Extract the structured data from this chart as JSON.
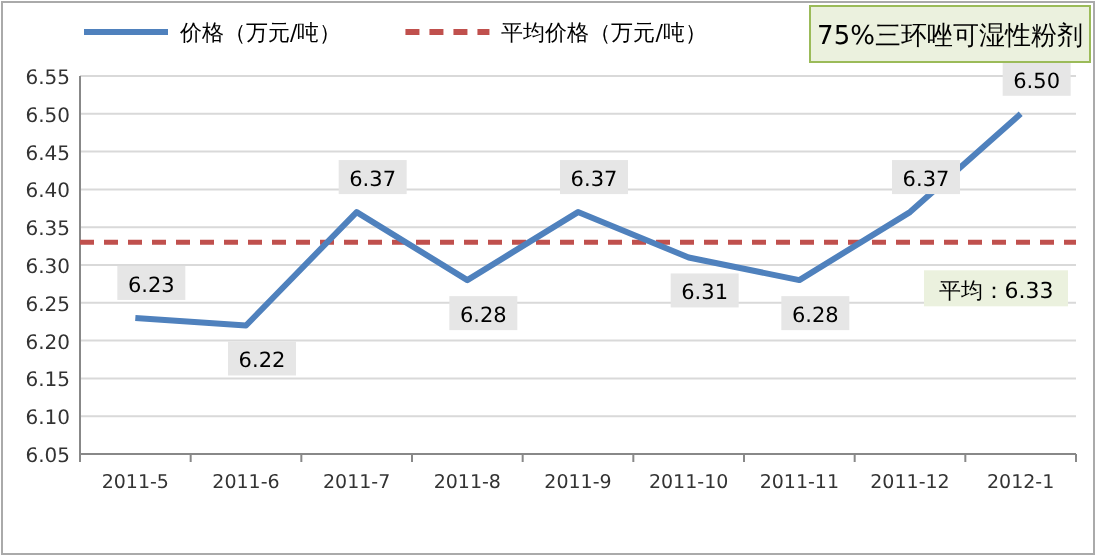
{
  "chart_data": {
    "type": "line",
    "title": "75%三环唑可湿性粉剂",
    "categories": [
      "2011-5",
      "2011-6",
      "2011-7",
      "2011-8",
      "2011-9",
      "2011-10",
      "2011-11",
      "2011-12",
      "2012-1"
    ],
    "series": [
      {
        "name": "价格（万元/吨）",
        "color": "#4f81bd",
        "values": [
          6.23,
          6.22,
          6.37,
          6.28,
          6.37,
          6.31,
          6.28,
          6.37,
          6.5
        ],
        "value_labels": [
          "6.23",
          "6.22",
          "6.37",
          "6.28",
          "6.37",
          "6.31",
          "6.28",
          "6.37",
          "6.50"
        ]
      }
    ],
    "ref_lines": [
      {
        "axis": "y",
        "value": 6.33,
        "label": "平均价格（万元/吨）",
        "color": "#c0504d",
        "line_style": "dashed"
      }
    ],
    "annotations": [
      {
        "text": "平均：6.33",
        "y": 6.33
      }
    ],
    "ylim": [
      6.05,
      6.55
    ],
    "yticks": [
      6.05,
      {
        "value": 6.1,
        "label": "6.10"
      },
      6.15,
      {
        "value": 6.2,
        "label": "6.20"
      },
      6.25,
      {
        "value": 6.3,
        "label": "6.30"
      },
      6.35,
      {
        "value": 6.4,
        "label": "6.40"
      },
      6.45,
      {
        "value": 6.5,
        "label": "6.50"
      },
      6.55
    ],
    "grid": "y",
    "legend": "top",
    "marker": "none",
    "line_style": "solid"
  }
}
